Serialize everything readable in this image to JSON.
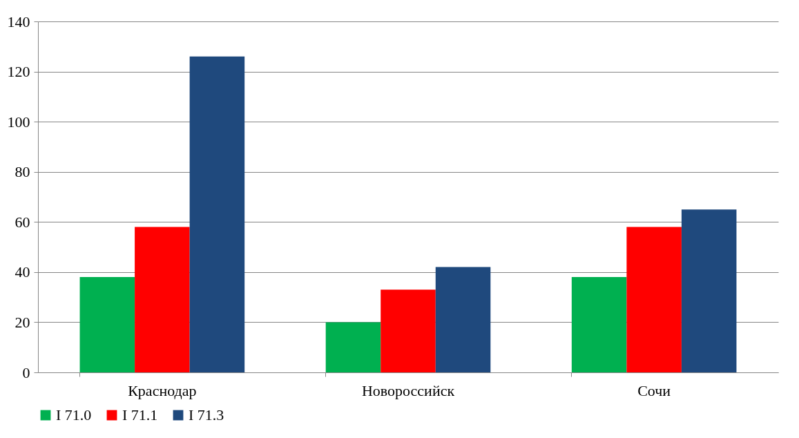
{
  "chart_data": {
    "type": "bar",
    "categories": [
      "Краснодар",
      "Новороссийск",
      "Сочи"
    ],
    "series": [
      {
        "name": "I 71.0",
        "color": "#00b050",
        "values": [
          38,
          20,
          38
        ]
      },
      {
        "name": "I 71.1",
        "color": "#ff0000",
        "values": [
          58,
          33,
          58
        ]
      },
      {
        "name": "I 71.3",
        "color": "#1f497d",
        "values": [
          126,
          42,
          65
        ]
      }
    ],
    "ylim": [
      0,
      140
    ],
    "yticks": [
      0,
      20,
      40,
      60,
      80,
      100,
      120,
      140
    ],
    "grid": "y",
    "legend": "bottom"
  }
}
